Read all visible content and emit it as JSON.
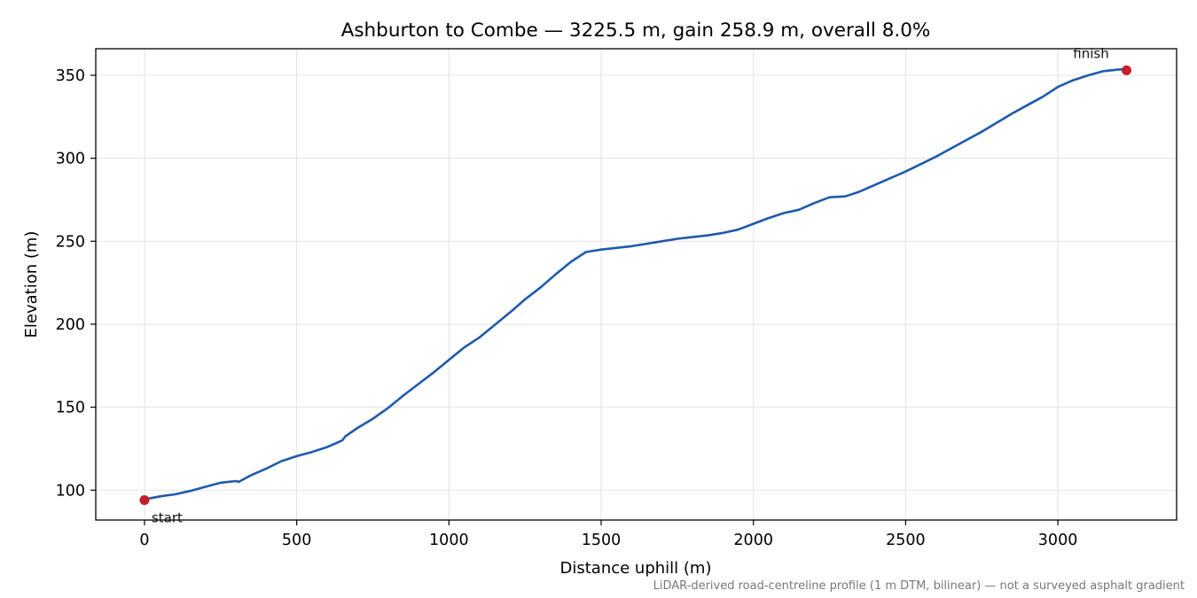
{
  "chart_data": {
    "type": "line",
    "title": "Ashburton to Combe — 3225.5 m, gain 258.9 m, overall 8.0%",
    "xlabel": "Distance uphill (m)",
    "ylabel": "Elevation (m)",
    "xlim": [
      -160,
      3390
    ],
    "ylim": [
      82,
      366
    ],
    "xticks": [
      0,
      500,
      1000,
      1500,
      2000,
      2500,
      3000
    ],
    "yticks": [
      100,
      150,
      200,
      250,
      300,
      350
    ],
    "grid": true,
    "series": [
      {
        "color": "#1f5aab",
        "x": [
          0,
          30,
          60,
          100,
          150,
          200,
          250,
          300,
          310,
          350,
          400,
          450,
          500,
          550,
          600,
          650,
          660,
          700,
          750,
          800,
          850,
          900,
          950,
          1000,
          1050,
          1100,
          1150,
          1200,
          1250,
          1300,
          1350,
          1400,
          1450,
          1500,
          1550,
          1600,
          1650,
          1700,
          1750,
          1800,
          1850,
          1900,
          1950,
          2000,
          2050,
          2100,
          2150,
          2200,
          2250,
          2300,
          2310,
          2350,
          2400,
          2450,
          2500,
          2550,
          2600,
          2650,
          2700,
          2750,
          2800,
          2850,
          2900,
          2950,
          3000,
          3050,
          3100,
          3150,
          3200,
          3225.5
        ],
        "y": [
          94.5,
          95.5,
          96.5,
          97.5,
          99.5,
          102,
          104.5,
          105.5,
          105,
          109,
          113,
          117.5,
          120.5,
          123,
          126,
          130,
          132.5,
          137.5,
          143,
          149.5,
          157,
          164,
          171,
          178.5,
          186,
          192,
          199.5,
          207,
          215,
          222,
          230,
          237.5,
          243.5,
          245,
          246,
          247,
          248.5,
          250,
          251.5,
          252.5,
          253.5,
          255,
          257,
          260.5,
          264,
          267,
          269,
          273,
          276.5,
          277,
          277.5,
          280,
          284,
          288,
          292,
          296.5,
          301,
          306,
          311,
          316,
          321.5,
          327,
          332,
          337,
          343,
          347,
          350,
          352.5,
          353.5,
          353.5
        ]
      }
    ],
    "markers": [
      {
        "label": "start",
        "x": 0,
        "y": 94,
        "color": "#c41e2c"
      },
      {
        "label": "finish",
        "x": 3225.5,
        "y": 353,
        "color": "#c41e2c"
      }
    ]
  },
  "footnote": "LiDAR-derived road-centreline profile (1 m DTM, bilinear) — not a surveyed asphalt gradient"
}
